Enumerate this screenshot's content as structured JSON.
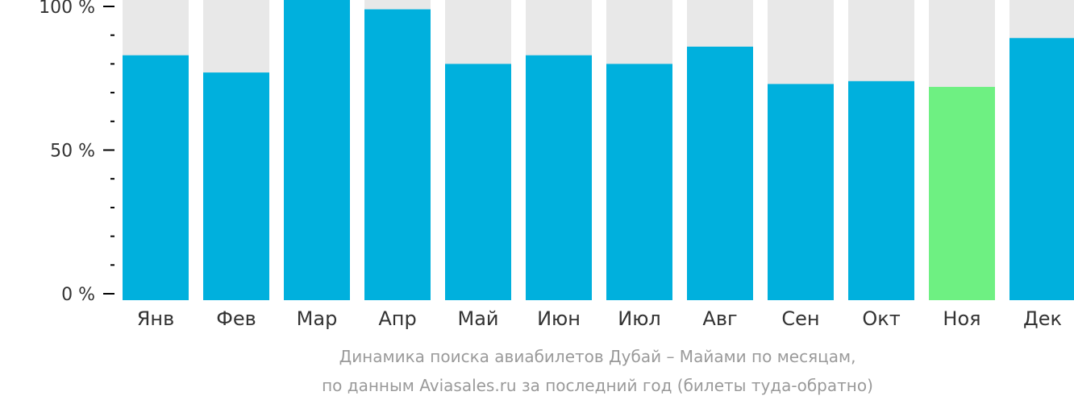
{
  "chart_data": {
    "type": "bar",
    "categories": [
      "Янв",
      "Фев",
      "Мар",
      "Апр",
      "Май",
      "Июн",
      "Июл",
      "Авг",
      "Сен",
      "Окт",
      "Ноя",
      "Дек"
    ],
    "values": [
      83,
      77,
      104,
      99,
      80,
      83,
      80,
      86,
      73,
      74,
      72,
      89
    ],
    "background_value": 100,
    "highlight_index": 10,
    "ylim": [
      0,
      100
    ],
    "yticks": [
      {
        "value": 0,
        "label": "0 %"
      },
      {
        "value": 50,
        "label": "50 %"
      },
      {
        "value": 100,
        "label": "100 %"
      }
    ],
    "minor_tick_step": 10,
    "colors": {
      "bar": "#00b0dd",
      "highlight": "#6ef082",
      "background_bar": "#e8e8e8",
      "axis": "#000000",
      "tick_label": "#333333"
    }
  },
  "caption": {
    "line1": "Динамика поиска авиабилетов Дубай – Майами по месяцам,",
    "line2": "по данным Aviasales.ru за последний год (билеты туда-обратно)"
  }
}
